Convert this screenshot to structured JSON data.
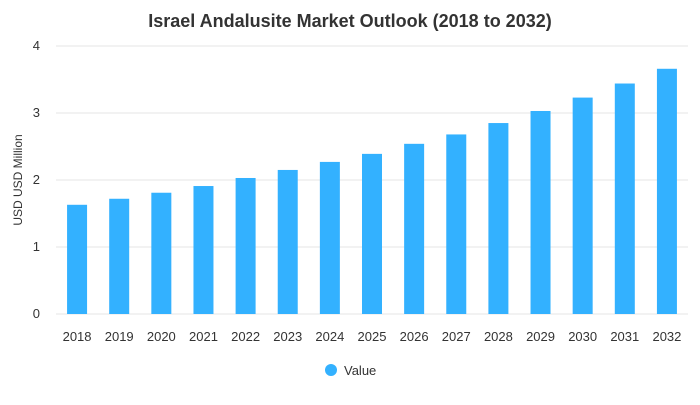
{
  "chart_data": {
    "type": "bar",
    "title": "Israel Andalusite Market Outlook (2018 to 2032)",
    "xlabel": "",
    "ylabel": "USD USD Million",
    "categories": [
      "2018",
      "2019",
      "2020",
      "2021",
      "2022",
      "2023",
      "2024",
      "2025",
      "2026",
      "2027",
      "2028",
      "2029",
      "2030",
      "2031",
      "2032"
    ],
    "series": [
      {
        "name": "Value",
        "values": [
          1.63,
          1.72,
          1.81,
          1.91,
          2.03,
          2.15,
          2.27,
          2.39,
          2.54,
          2.68,
          2.85,
          3.03,
          3.23,
          3.44,
          3.66
        ],
        "color": "#33b1ff"
      }
    ],
    "ylim": [
      0,
      4
    ],
    "yticks": [
      "0",
      "1",
      "2",
      "3",
      "4"
    ],
    "grid": true,
    "legend_position": "bottom"
  }
}
